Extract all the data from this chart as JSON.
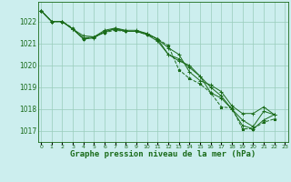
{
  "title": "Graphe pression niveau de la mer (hPa)",
  "background_color": "#cceeee",
  "grid_color": "#99ccbb",
  "line_color": "#1a6b1a",
  "hours": [
    0,
    1,
    2,
    3,
    4,
    5,
    6,
    7,
    8,
    9,
    10,
    11,
    12,
    13,
    14,
    15,
    16,
    17,
    18,
    19,
    20,
    21,
    22,
    23
  ],
  "series": [
    [
      1022.5,
      1022.0,
      1022.0,
      1021.7,
      1021.2,
      1021.3,
      1021.5,
      1021.6,
      1021.55,
      1021.55,
      1021.4,
      1021.2,
      1020.9,
      1019.8,
      1019.4,
      1019.15,
      1018.75,
      1018.1,
      1018.05,
      1017.1,
      1017.1,
      1017.4,
      1017.55,
      null
    ],
    [
      1022.5,
      1022.0,
      1022.0,
      1021.65,
      1021.2,
      1021.25,
      1021.55,
      1021.65,
      1021.55,
      1021.55,
      1021.4,
      1021.1,
      1020.5,
      1020.3,
      1019.9,
      1019.5,
      1018.75,
      1018.5,
      1018.0,
      1017.25,
      1017.1,
      1017.5,
      1017.75,
      null
    ],
    [
      1022.5,
      1022.0,
      1022.0,
      1021.65,
      1021.35,
      1021.3,
      1021.6,
      1021.7,
      1021.6,
      1021.6,
      1021.45,
      1021.2,
      1020.8,
      1020.5,
      1019.7,
      1019.3,
      1019.1,
      1018.8,
      1018.15,
      1017.8,
      1017.8,
      1018.1,
      1017.75,
      null
    ],
    [
      1022.5,
      1022.0,
      1022.0,
      1021.65,
      1021.25,
      1021.3,
      1021.5,
      1021.7,
      1021.55,
      1021.55,
      1021.45,
      1021.2,
      1020.5,
      1020.2,
      1020.0,
      1019.5,
      1019.0,
      1018.6,
      1018.0,
      1017.5,
      1017.2,
      1017.9,
      1017.75,
      null
    ]
  ],
  "ylim": [
    1016.5,
    1022.9
  ],
  "yticks": [
    1017,
    1018,
    1019,
    1020,
    1021,
    1022
  ],
  "ytick_fontsize": 5.5,
  "xtick_fontsize": 4.5,
  "xlabel_fontsize": 6.5
}
